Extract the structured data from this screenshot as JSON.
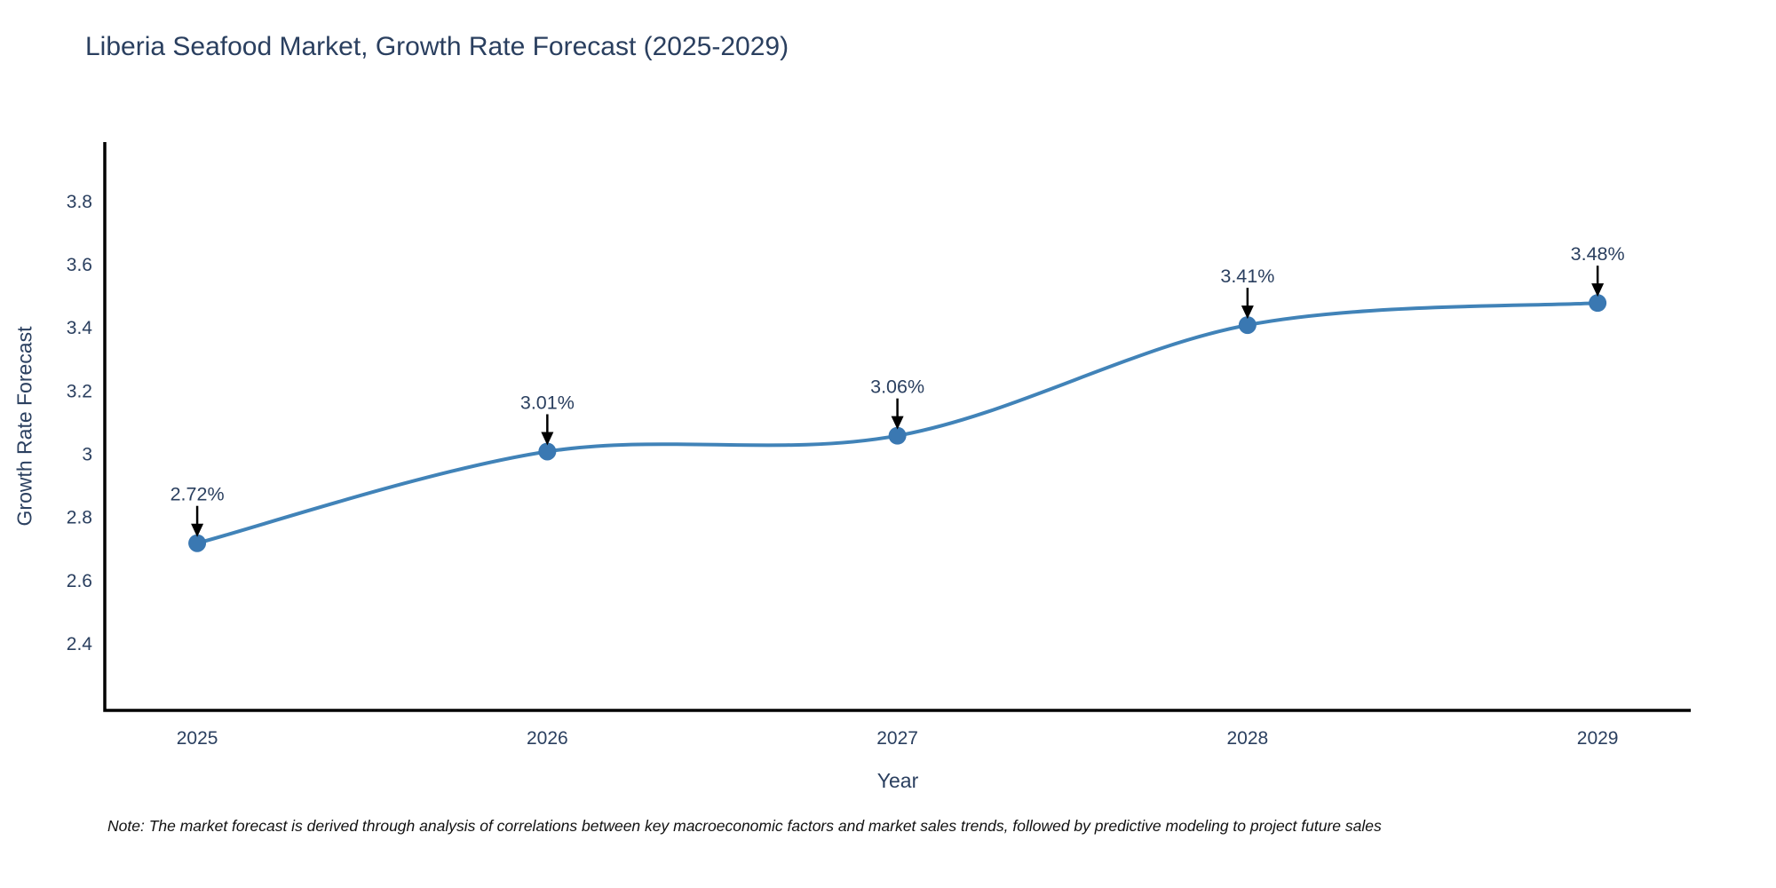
{
  "header": {
    "title": "Liberia Seafood Market, Growth Rate Forecast (2025-2029)"
  },
  "chart_data": {
    "type": "line",
    "line_shape": "spline",
    "title": "Liberia Seafood Market, Growth Rate Forecast (2025-2029)",
    "xlabel": "Year",
    "ylabel": "Growth Rate Forecast",
    "x": [
      2025,
      2026,
      2027,
      2028,
      2029
    ],
    "values": [
      2.72,
      3.01,
      3.06,
      3.41,
      3.48
    ],
    "point_labels": [
      "2.72%",
      "3.01%",
      "3.06%",
      "3.41%",
      "3.48%"
    ],
    "xticks": [
      "2025",
      "2026",
      "2027",
      "2028",
      "2029"
    ],
    "yticks": [
      2.4,
      2.6,
      2.8,
      3,
      3.2,
      3.4,
      3.6,
      3.8
    ],
    "xlim": [
      2024.736,
      2029.266
    ],
    "ylim": [
      2.191,
      3.989
    ],
    "grid": false,
    "legend": "none",
    "markers": true
  },
  "note": {
    "text": "Note: The market forecast is derived through analysis of correlations between key macroeconomic factors and market sales trends, followed by predictive modeling to project future sales"
  },
  "colors": {
    "line": "#4183b8",
    "marker": "#3a78b2",
    "axis": "#000000",
    "text": "#2a3f5f",
    "annotation_arrow": "#000000",
    "note_text": "#111111",
    "background": "#ffffff"
  }
}
